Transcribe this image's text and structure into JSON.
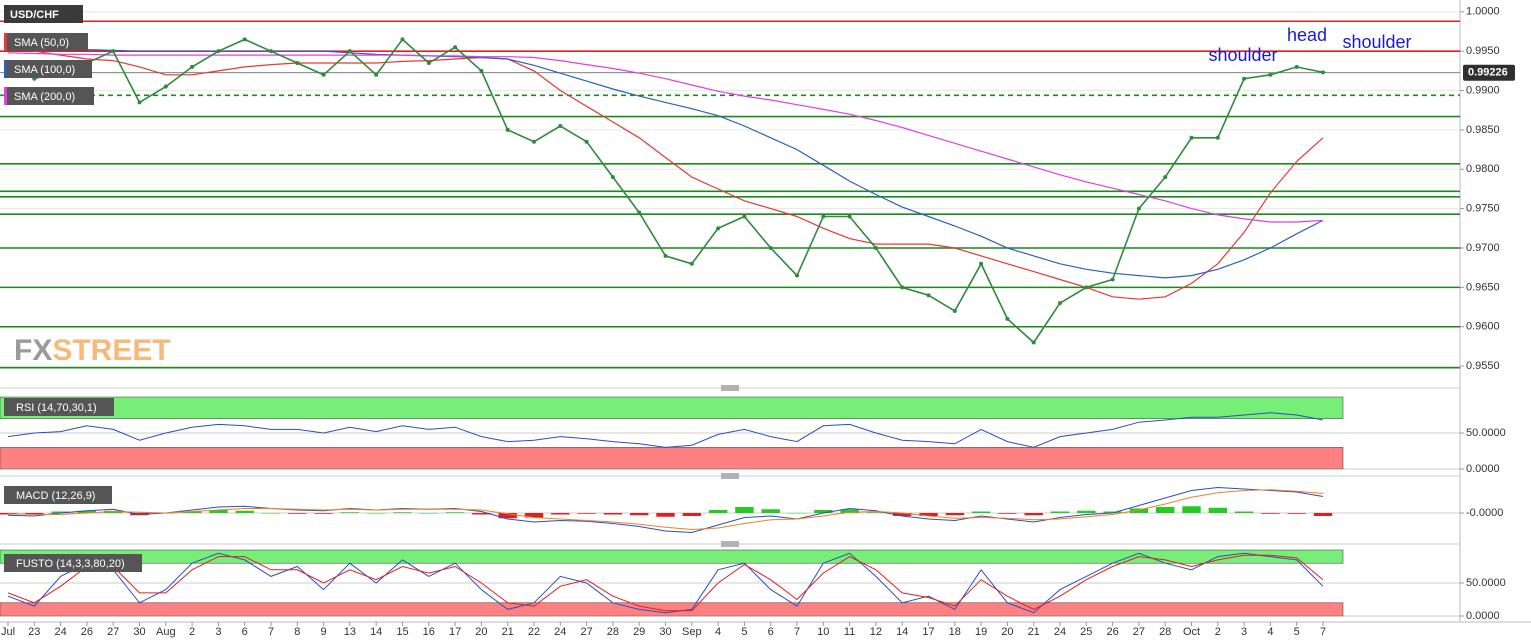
{
  "chart_data": [
    {
      "type": "line",
      "title": "USD/CHF",
      "watermark": [
        "FX",
        "STREET"
      ],
      "annotations": [
        "shoulder",
        "head",
        "shoulder"
      ],
      "categories": [
        "Jul",
        "23",
        "24",
        "26",
        "27",
        "30",
        "Aug",
        "2",
        "3",
        "6",
        "7",
        "8",
        "9",
        "13",
        "14",
        "15",
        "16",
        "17",
        "20",
        "21",
        "22",
        "24",
        "27",
        "28",
        "29",
        "30",
        "Sep",
        "4",
        "5",
        "6",
        "7",
        "10",
        "11",
        "12",
        "14",
        "17",
        "18",
        "19",
        "20",
        "21",
        "24",
        "25",
        "26",
        "27",
        "28",
        "Oct",
        "2",
        "3",
        "4",
        "5",
        "7"
      ],
      "values": [
        0.9935,
        0.9915,
        0.9925,
        0.9935,
        0.995,
        0.9885,
        0.9905,
        0.993,
        0.995,
        0.9965,
        0.995,
        0.9935,
        0.992,
        0.995,
        0.992,
        0.9965,
        0.9935,
        0.9955,
        0.9925,
        0.985,
        0.9835,
        0.9855,
        0.9835,
        0.979,
        0.9745,
        0.969,
        0.968,
        0.9725,
        0.974,
        0.97,
        0.9665,
        0.974,
        0.974,
        0.97,
        0.965,
        0.964,
        0.962,
        0.968,
        0.961,
        0.958,
        0.963,
        0.965,
        0.966,
        0.975,
        0.979,
        0.984,
        0.984,
        0.9915,
        0.992,
        0.993,
        0.9923
      ],
      "color": "#2e8b3a",
      "series": [
        {
          "name": "SMA (50,0)",
          "color": "#e53935",
          "values": [
            0.996,
            0.995,
            0.9945,
            0.994,
            0.9938,
            0.993,
            0.992,
            0.992,
            0.9925,
            0.993,
            0.9933,
            0.9935,
            0.9935,
            0.9935,
            0.9935,
            0.9937,
            0.9938,
            0.994,
            0.9942,
            0.994,
            0.9925,
            0.99,
            0.988,
            0.986,
            0.984,
            0.9815,
            0.979,
            0.9775,
            0.976,
            0.975,
            0.974,
            0.9725,
            0.9712,
            0.9705,
            0.9705,
            0.9705,
            0.97,
            0.969,
            0.968,
            0.967,
            0.966,
            0.965,
            0.9638,
            0.9635,
            0.9638,
            0.9655,
            0.968,
            0.972,
            0.977,
            0.981,
            0.984
          ]
        },
        {
          "name": "SMA (100,0)",
          "color": "#2962b8",
          "values": [
            0.9955,
            0.9954,
            0.9953,
            0.9952,
            0.9951,
            0.995,
            0.995,
            0.995,
            0.995,
            0.995,
            0.995,
            0.995,
            0.995,
            0.9948,
            0.9946,
            0.9945,
            0.9944,
            0.9943,
            0.9942,
            0.994,
            0.9932,
            0.9922,
            0.9912,
            0.9902,
            0.9893,
            0.9885,
            0.9877,
            0.9868,
            0.9855,
            0.984,
            0.9825,
            0.9805,
            0.9785,
            0.9768,
            0.9752,
            0.974,
            0.9728,
            0.9715,
            0.97,
            0.969,
            0.968,
            0.9673,
            0.9668,
            0.9665,
            0.9662,
            0.9665,
            0.9673,
            0.9685,
            0.97,
            0.9718,
            0.9735
          ]
        },
        {
          "name": "SMA (200,0)",
          "color": "#e040e0",
          "values": [
            0.9948,
            0.9947,
            0.9946,
            0.9946,
            0.9945,
            0.9945,
            0.9945,
            0.9945,
            0.9945,
            0.9945,
            0.9945,
            0.9945,
            0.9945,
            0.9945,
            0.9945,
            0.9945,
            0.9944,
            0.9944,
            0.9943,
            0.9943,
            0.9942,
            0.9938,
            0.9933,
            0.9928,
            0.9922,
            0.9915,
            0.9907,
            0.9899,
            0.9893,
            0.9888,
            0.9882,
            0.9876,
            0.987,
            0.9862,
            0.9853,
            0.9843,
            0.9833,
            0.9823,
            0.9813,
            0.9803,
            0.9793,
            0.9784,
            0.9776,
            0.9768,
            0.976,
            0.975,
            0.9742,
            0.9737,
            0.9733,
            0.9733,
            0.9735
          ]
        }
      ],
      "ylim": [
        0.9526,
        1.0015
      ],
      "yticks": [
        {
          "value": 1,
          "label": "1.0000"
        },
        {
          "value": 0.995,
          "label": "0.9950"
        },
        {
          "value": 0.99,
          "label": "0.9900"
        },
        {
          "value": 0.985,
          "label": "0.9850"
        },
        {
          "value": 0.98,
          "label": "0.9800"
        },
        {
          "value": 0.975,
          "label": "0.9750"
        },
        {
          "value": 0.97,
          "label": "0.9700"
        },
        {
          "value": 0.965,
          "label": "0.9650"
        },
        {
          "value": 0.96,
          "label": "0.9600"
        },
        {
          "value": 0.955,
          "label": "0.9550"
        }
      ],
      "grid": true,
      "last_price": 0.99226,
      "levels": [
        {
          "value": 0.9988,
          "color": "#e02020"
        },
        {
          "value": 0.995,
          "color": "#e02020"
        },
        {
          "value": 0.9894,
          "color": "#1a8a1a",
          "dashed": true
        },
        {
          "value": 0.9867,
          "color": "#1a8a1a"
        },
        {
          "value": 0.9807,
          "color": "#1a8a1a"
        },
        {
          "value": 0.9772,
          "color": "#1a8a1a"
        },
        {
          "value": 0.9765,
          "color": "#1a8a1a"
        },
        {
          "value": 0.9743,
          "color": "#1a8a1a"
        },
        {
          "value": 0.97,
          "color": "#1a8a1a"
        },
        {
          "value": 0.965,
          "color": "#1a8a1a"
        },
        {
          "value": 0.96,
          "color": "#1a8a1a"
        },
        {
          "value": 0.9548,
          "color": "#1a8a1a"
        }
      ]
    },
    {
      "type": "line",
      "title": "RSI (14,70,30,1)",
      "ylim": [
        0,
        100
      ],
      "yticks": [
        {
          "value": 50,
          "label": "50.0000"
        },
        {
          "value": 0,
          "label": "0.0000"
        }
      ],
      "zones": [
        {
          "from": 70,
          "to": 100,
          "color": "#77ee77"
        },
        {
          "from": 0,
          "to": 30,
          "color": "#ff8080"
        }
      ],
      "series": [
        {
          "color": "#2a4fc0",
          "values": [
            45,
            50,
            52,
            60,
            55,
            40,
            50,
            58,
            62,
            60,
            55,
            55,
            50,
            58,
            52,
            60,
            55,
            58,
            45,
            38,
            40,
            45,
            42,
            38,
            35,
            30,
            33,
            48,
            55,
            45,
            38,
            60,
            62,
            50,
            40,
            38,
            35,
            55,
            38,
            30,
            45,
            50,
            55,
            65,
            68,
            72,
            72,
            75,
            78,
            75,
            68
          ]
        }
      ]
    },
    {
      "type": "line",
      "title": "MACD (12,26,9)",
      "ylim": [
        -0.0036,
        0.004
      ],
      "yticks": [
        {
          "value": 0,
          "label": "-0.0000"
        }
      ],
      "series": [
        {
          "type": "bar",
          "colors": [
            "#22cc22",
            "#e02020"
          ],
          "values": [
            -0.0002,
            -0.0002,
            0.0002,
            0.0003,
            0.0003,
            -0.0003,
            0,
            0.0002,
            0.0004,
            0.0003,
            0,
            -0.0001,
            -0.0001,
            0.0001,
            0,
            0.0001,
            0,
            0.0001,
            -0.0002,
            -0.0007,
            -0.0006,
            -0.0002,
            -0.0001,
            -0.0002,
            -0.0003,
            -0.0005,
            -0.0004,
            0.0004,
            0.0008,
            0.0005,
            0,
            0.0004,
            0.0005,
            0.0001,
            -0.0004,
            -0.0004,
            -0.0003,
            0.0002,
            -0.0001,
            -0.0003,
            0.0002,
            0.0003,
            0.0002,
            0.0006,
            0.0008,
            0.0009,
            0.0007,
            0.0002,
            -0.0001,
            -0.0001,
            -0.0004
          ]
        },
        {
          "color": "#2a4fc0",
          "values": [
            -0.0003,
            -0.0004,
            0,
            0.0003,
            0.0005,
            -0.0002,
            0,
            0.0004,
            0.0008,
            0.0009,
            0.0006,
            0.0004,
            0.0003,
            0.0006,
            0.0004,
            0.0006,
            0.0005,
            0.0006,
            0.0002,
            -0.0008,
            -0.0012,
            -0.001,
            -0.0011,
            -0.0014,
            -0.0018,
            -0.0024,
            -0.0026,
            -0.0016,
            -0.0006,
            -0.0004,
            -0.0008,
            0,
            0.0006,
            0.0003,
            -0.0004,
            -0.0008,
            -0.001,
            -0.0004,
            -0.0008,
            -0.0012,
            -0.0006,
            -0.0002,
            0,
            0.001,
            0.002,
            0.003,
            0.0034,
            0.0032,
            0.003,
            0.0028,
            0.0022
          ]
        },
        {
          "color": "#f08020",
          "values": [
            -0.0001,
            -0.0002,
            -0.0002,
            0,
            0.0002,
            0.0001,
            0,
            0.0002,
            0.0004,
            0.0006,
            0.0006,
            0.0005,
            0.0004,
            0.0005,
            0.0004,
            0.0005,
            0.0005,
            0.0005,
            0.0004,
            -0.0001,
            -0.0006,
            -0.0008,
            -0.001,
            -0.0012,
            -0.0015,
            -0.0019,
            -0.0022,
            -0.002,
            -0.0014,
            -0.0009,
            -0.0008,
            -0.0004,
            0.0001,
            0.0002,
            0,
            -0.0004,
            -0.0007,
            -0.0006,
            -0.0007,
            -0.0009,
            -0.0008,
            -0.0005,
            -0.0002,
            0.0004,
            0.0012,
            0.0021,
            0.0027,
            0.003,
            0.0031,
            0.0029,
            0.0026
          ]
        }
      ]
    },
    {
      "type": "line",
      "title": "FUSTO (14,3,3,80,20)",
      "ylim": [
        0,
        100
      ],
      "yticks": [
        {
          "value": 50,
          "label": "50.0000"
        },
        {
          "value": 0,
          "label": "0.0000"
        }
      ],
      "zones": [
        {
          "from": 80,
          "to": 100,
          "color": "#77ee77"
        },
        {
          "from": 0,
          "to": 20,
          "color": "#ff8080"
        }
      ],
      "series": [
        {
          "color": "#2a4fc0",
          "values": [
            30,
            15,
            60,
            80,
            70,
            20,
            40,
            80,
            95,
            85,
            60,
            75,
            40,
            80,
            50,
            85,
            60,
            80,
            40,
            10,
            20,
            60,
            50,
            20,
            10,
            5,
            10,
            70,
            80,
            40,
            15,
            80,
            95,
            60,
            20,
            30,
            10,
            70,
            20,
            5,
            40,
            60,
            80,
            95,
            80,
            70,
            90,
            95,
            90,
            85,
            45
          ]
        },
        {
          "color": "#e02020",
          "values": [
            35,
            20,
            45,
            75,
            75,
            35,
            35,
            70,
            90,
            90,
            70,
            70,
            50,
            70,
            55,
            75,
            65,
            75,
            50,
            20,
            15,
            45,
            55,
            30,
            15,
            8,
            8,
            50,
            78,
            55,
            25,
            65,
            90,
            70,
            35,
            28,
            15,
            55,
            30,
            10,
            30,
            55,
            75,
            90,
            85,
            75,
            85,
            92,
            92,
            88,
            55
          ]
        }
      ]
    }
  ]
}
